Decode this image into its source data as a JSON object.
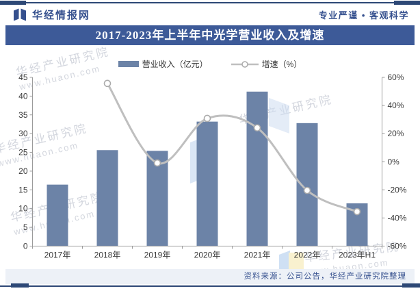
{
  "header": {
    "brand": "华经情报网",
    "slogan": "专业严谨 • 客观科学"
  },
  "title": "2017-2023年上半年中光学营业收入及增速",
  "legend": {
    "bar": "营业收入（亿元）",
    "line": "增速（%）"
  },
  "source": "资料来源：公司公告，华经产业研究院整理",
  "watermark": {
    "line1": "华经产业研究院",
    "line2": "www.huaon.com"
  },
  "colors": {
    "bar": "#6c83a7",
    "line": "#bfbfbf",
    "marker_stroke": "#ababab",
    "band": "#3d5a98",
    "rule": "#2d4876",
    "axis": "#9b9b9b",
    "tick_text": "#3a3a3a",
    "source_band": "#edf1f7"
  },
  "chart_data": {
    "type": "bar+line",
    "title": "2017-2023年上半年中光学营业收入及增速",
    "categories": [
      "2017年",
      "2018年",
      "2019年",
      "2020年",
      "2021年",
      "2022年",
      "2023年H1"
    ],
    "series": [
      {
        "name": "营业收入（亿元）",
        "type": "bar",
        "axis": "left",
        "values": [
          16.4,
          25.6,
          25.4,
          33.2,
          41.2,
          32.8,
          11.4
        ]
      },
      {
        "name": "增速（%）",
        "type": "line",
        "axis": "right",
        "values": [
          null,
          55.7,
          -0.9,
          30.8,
          24.1,
          -20.4,
          -35.5
        ]
      }
    ],
    "left_axis": {
      "min": 0,
      "max": 45,
      "step": 5,
      "suffix": ""
    },
    "right_axis": {
      "min": -60,
      "max": 60,
      "step": 20,
      "suffix": "%"
    },
    "grid": false,
    "legend_position": "top"
  }
}
